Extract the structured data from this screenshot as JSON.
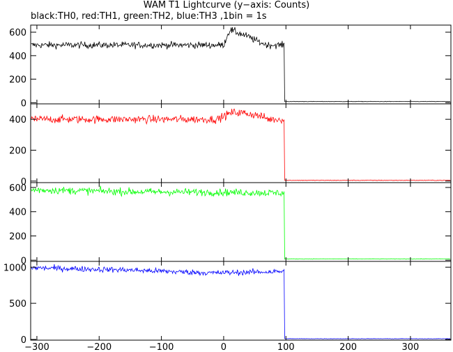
{
  "chart_data": {
    "type": "line",
    "title": "WAM T1 Lightcurve (y−axis: Counts)",
    "subtitle": "black:TH0, red:TH1, green:TH2, blue:TH3 ,1bin = 1s",
    "xlim": [
      -310,
      365
    ],
    "x_ticks": [
      -300,
      -200,
      -100,
      0,
      100,
      200,
      300
    ],
    "step_time": 98,
    "panels": [
      {
        "name": "TH0",
        "color": "#000000",
        "ylim": [
          -10,
          660
        ],
        "y_ticks": [
          0,
          200,
          400,
          600
        ],
        "pre_level": 490,
        "post_level": 10,
        "features": [
          {
            "x": 0,
            "value": 490
          },
          {
            "x": 5,
            "value": 560
          },
          {
            "x": 10,
            "value": 620
          },
          {
            "x": 20,
            "value": 600
          },
          {
            "x": 30,
            "value": 580
          },
          {
            "x": 40,
            "value": 560
          },
          {
            "x": 55,
            "value": 520
          },
          {
            "x": 70,
            "value": 490
          }
        ]
      },
      {
        "name": "TH1",
        "color": "#ff0000",
        "ylim": [
          -10,
          500
        ],
        "y_ticks": [
          0,
          200,
          400
        ],
        "pre_level": 400,
        "post_level": 5,
        "features": [
          {
            "x": -10,
            "value": 400
          },
          {
            "x": 0,
            "value": 420
          },
          {
            "x": 15,
            "value": 445
          },
          {
            "x": 35,
            "value": 440
          },
          {
            "x": 55,
            "value": 425
          },
          {
            "x": 70,
            "value": 405
          }
        ]
      },
      {
        "name": "TH2",
        "color": "#00ff00",
        "ylim": [
          -10,
          640
        ],
        "y_ticks": [
          0,
          200,
          400,
          600
        ],
        "pre_level": 570,
        "post_level": 10,
        "features": [
          {
            "x": -300,
            "value": 580
          },
          {
            "x": -150,
            "value": 565
          },
          {
            "x": 0,
            "value": 560
          },
          {
            "x": 95,
            "value": 555
          }
        ]
      },
      {
        "name": "TH3",
        "color": "#0000ff",
        "ylim": [
          -10,
          1080
        ],
        "y_ticks": [
          0,
          500,
          1000
        ],
        "pre_level": 960,
        "post_level": 10,
        "features": [
          {
            "x": -300,
            "value": 990
          },
          {
            "x": -150,
            "value": 960
          },
          {
            "x": -20,
            "value": 920
          },
          {
            "x": 95,
            "value": 940
          }
        ]
      }
    ],
    "grid": false,
    "legend": "none"
  }
}
